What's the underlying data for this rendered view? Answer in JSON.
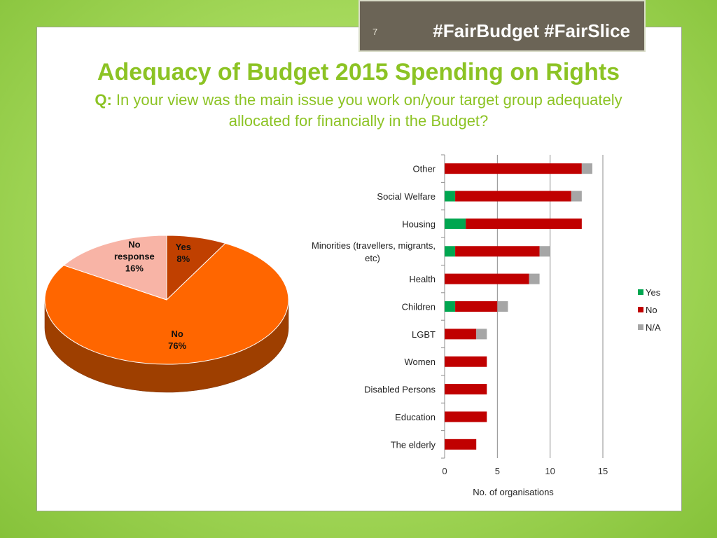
{
  "header": {
    "slide_number": "7",
    "hashtags": "#FairBudget #FairSlice"
  },
  "title": "Adequacy of Budget 2015 Spending on Rights",
  "question": {
    "label": "Q:",
    "text": "In your view was the main issue you work on/your target group adequately allocated for financially in the Budget?"
  },
  "colors": {
    "yes": "#00a650",
    "no": "#c00000",
    "na": "#a6a6a6",
    "pie_yes": "#c04000",
    "pie_no": "#ff6600",
    "pie_no_response": "#f8b4a6"
  },
  "chart_data": [
    {
      "type": "pie",
      "style": "3d",
      "slices": [
        {
          "label_lines": [
            "Yes",
            "8%"
          ],
          "value": 8
        },
        {
          "label_lines": [
            "No",
            "76%"
          ],
          "value": 76
        },
        {
          "label_lines": [
            "No",
            "response",
            "16%"
          ],
          "value": 16
        }
      ]
    },
    {
      "type": "bar",
      "orientation": "horizontal",
      "stacked": true,
      "categories": [
        [
          "Other"
        ],
        [
          "Social Welfare"
        ],
        [
          "Housing"
        ],
        [
          "Minorities (travellers, migrants,",
          "etc)"
        ],
        [
          "Health"
        ],
        [
          "Children"
        ],
        [
          "LGBT"
        ],
        [
          "Women"
        ],
        [
          "Disabled Persons"
        ],
        [
          "Education"
        ],
        [
          "The elderly"
        ]
      ],
      "series": [
        {
          "name": "Yes",
          "values": [
            0,
            1,
            2,
            1,
            0,
            1,
            0,
            0,
            0,
            0,
            0
          ]
        },
        {
          "name": "No",
          "values": [
            13,
            11,
            11,
            8,
            8,
            4,
            3,
            4,
            4,
            4,
            3
          ]
        },
        {
          "name": "N/A",
          "values": [
            1,
            1,
            0,
            1,
            1,
            1,
            1,
            0,
            0,
            0,
            0
          ]
        }
      ],
      "xlim": [
        0,
        15
      ],
      "xticks": [
        "0",
        "5",
        "10",
        "15"
      ],
      "xlabel": "No. of organisations",
      "grid": true,
      "legend_position": "right"
    }
  ]
}
